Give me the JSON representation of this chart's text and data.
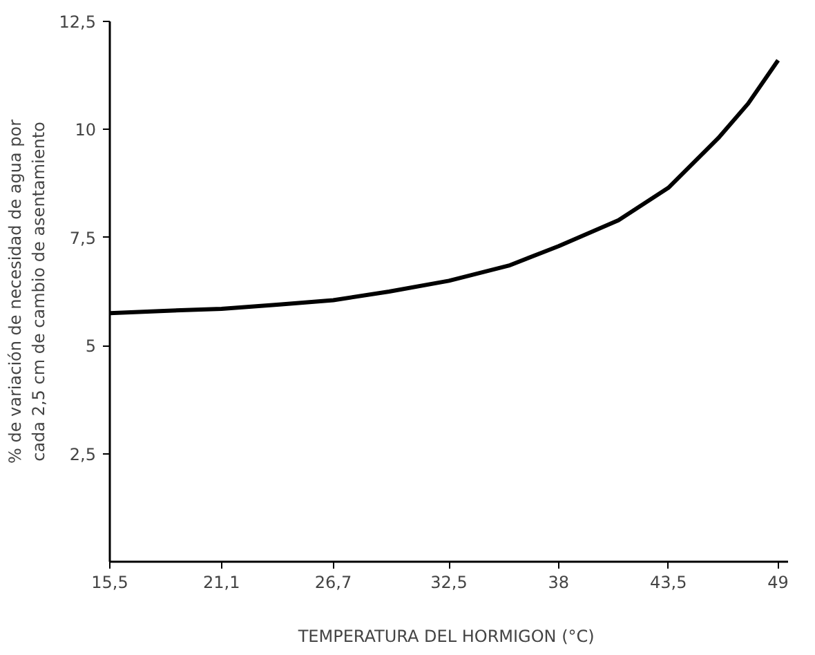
{
  "chart_data": {
    "type": "line",
    "xlabel": "TEMPERATURA DEL HORMIGON  (°C)",
    "ylabel": "% de variación de necesidad de agua por\ncada 2,5 cm de cambio de asentamiento",
    "x": [
      15.5,
      18,
      21.1,
      24,
      26.7,
      29.5,
      32.5,
      35.5,
      38,
      41,
      43.5,
      46,
      47.5,
      49
    ],
    "series": [
      {
        "color": "#000000",
        "values": [
          5.75,
          5.8,
          5.85,
          5.95,
          6.05,
          6.25,
          6.5,
          6.85,
          7.3,
          7.9,
          8.65,
          9.8,
          10.6,
          11.6
        ]
      }
    ],
    "xlim": [
      15.5,
      49.5
    ],
    "ylim": [
      0,
      12.5
    ],
    "xticks": [
      {
        "value": 15.5,
        "label": "15,5"
      },
      {
        "value": 21.1,
        "label": "21,1"
      },
      {
        "value": 26.7,
        "label": "26,7"
      },
      {
        "value": 32.5,
        "label": "32,5"
      },
      38,
      {
        "value": 43.5,
        "label": "43,5"
      },
      49
    ],
    "yticks": [
      {
        "value": 2.5,
        "label": "2,5"
      },
      5,
      {
        "value": 7.5,
        "label": "7,5"
      },
      10,
      {
        "value": 12.5,
        "label": "12,5"
      }
    ],
    "grid": false,
    "marker": "none",
    "line_style": "solid"
  }
}
